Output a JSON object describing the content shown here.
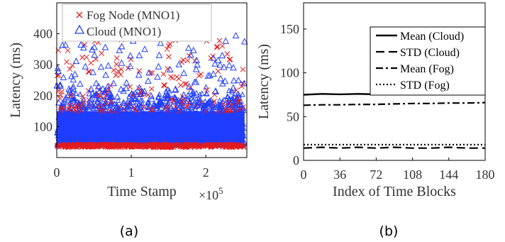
{
  "chart_data": [
    {
      "type": "scatter",
      "xlabel": "Time Stamp",
      "ylabel": "Latency (ms)",
      "x_exponent_label": "×10",
      "x_exponent_power": "5",
      "xlim": [
        0,
        2.55
      ],
      "ylim": [
        0,
        500
      ],
      "xticks": [
        0,
        1,
        2
      ],
      "yticks": [
        100,
        200,
        300,
        400
      ],
      "xtick_labels": [
        "0",
        "1",
        "2"
      ],
      "ytick_labels": [
        "100",
        "200",
        "300",
        "400"
      ],
      "legend_position": "top-center",
      "series": [
        {
          "name": "Fog Node (MNO1)",
          "marker": "x",
          "color": "#e41a1c"
        },
        {
          "name": "Cloud (MNO1)",
          "marker": "triangle",
          "color": "#1f3dff"
        }
      ],
      "panel_label": "(a)"
    },
    {
      "type": "line",
      "xlabel": "Index of Time Blocks",
      "ylabel": "Latency (ms)",
      "xlim": [
        0,
        180
      ],
      "ylim": [
        0,
        180
      ],
      "xticks": [
        0,
        36,
        72,
        108,
        144,
        180
      ],
      "yticks": [
        0,
        50,
        100,
        150
      ],
      "xtick_labels": [
        "0",
        "36",
        "72",
        "108",
        "144",
        "180"
      ],
      "ytick_labels": [
        "0",
        "50",
        "100",
        "150"
      ],
      "legend_position": "top-right",
      "x": [
        0,
        18,
        36,
        54,
        72,
        90,
        108,
        126,
        144,
        162,
        180
      ],
      "series": [
        {
          "name": "Mean (Cloud)",
          "style": "solid",
          "values": [
            75,
            76,
            75.5,
            76,
            75.5,
            76,
            75.5,
            76,
            75.5,
            76,
            75.5
          ]
        },
        {
          "name": "STD (Cloud)",
          "style": "dashed",
          "values": [
            14,
            15,
            14,
            15,
            14,
            15,
            14,
            14,
            15,
            14,
            14
          ]
        },
        {
          "name": "Mean (Fog)",
          "style": "dashdot",
          "values": [
            63,
            63.5,
            63.5,
            64,
            64,
            64.5,
            65,
            65,
            65.5,
            65.5,
            66
          ]
        },
        {
          "name": "STD (Fog)",
          "style": "dotted",
          "values": [
            18,
            18,
            18,
            18,
            18,
            18,
            18,
            18,
            18,
            18,
            18
          ]
        }
      ],
      "panel_label": "(b)"
    }
  ]
}
